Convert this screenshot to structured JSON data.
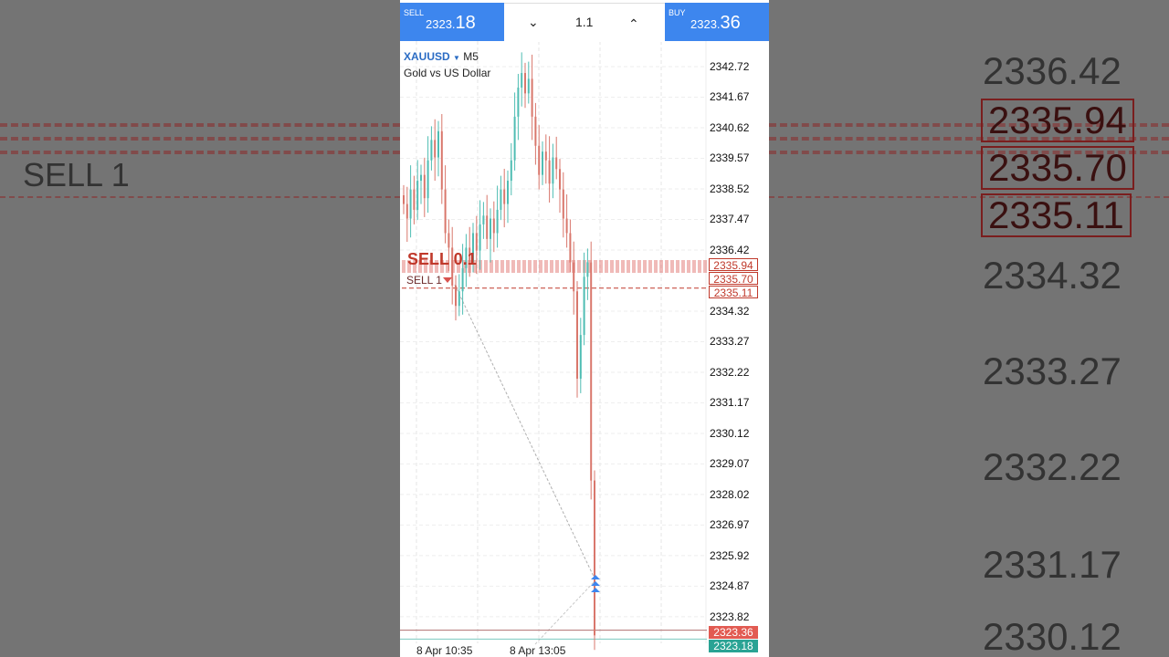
{
  "trade_bar": {
    "sell_label": "SELL",
    "sell_price_main": "2323.",
    "sell_price_big": "18",
    "volume": "1.1",
    "buy_label": "BUY",
    "buy_price_main": "2323.",
    "buy_price_big": "36",
    "volume_down_icon": "chevron-down-icon",
    "volume_up_icon": "chevron-up-icon"
  },
  "symbol": {
    "name": "XAUUSD",
    "timeframe": "M5",
    "description": "Gold vs US Dollar"
  },
  "price_axis": [
    "2342.72",
    "2341.67",
    "2340.62",
    "2339.57",
    "2338.52",
    "2337.47",
    "2336.42",
    "2334.32",
    "2333.27",
    "2332.22",
    "2331.17",
    "2330.12",
    "2329.07",
    "2328.02",
    "2326.97",
    "2325.92",
    "2324.87",
    "2323.82"
  ],
  "price_tags": {
    "order_1": "2335.94",
    "order_2": "2335.70",
    "order_3": "2335.11",
    "ask": "2323.36",
    "bid": "2323.18"
  },
  "order_labels": {
    "sell_group": "SELL 0.1",
    "sell_1": "SELL 1"
  },
  "time_axis": [
    "8 Apr 10:35",
    "8 Apr 13:05"
  ],
  "colors": {
    "up": "#4fbdb3",
    "down": "#d9776c",
    "accent": "#3d86ee",
    "order_line": "#c0392b"
  },
  "candles_close": [
    2338.0,
    2337.5,
    2338.5,
    2337.8,
    2338.8,
    2339.0,
    2338.2,
    2339.5,
    2340.2,
    2339.6,
    2340.5,
    2338.5,
    2337.0,
    2336.5,
    2335.2,
    2334.5,
    2335.0,
    2335.8,
    2336.5,
    2336.0,
    2337.0,
    2336.4,
    2337.3,
    2337.6,
    2336.8,
    2337.5,
    2337.0,
    2337.8,
    2338.5,
    2338.0,
    2338.8,
    2339.5,
    2341.0,
    2342.0,
    2342.5,
    2341.8,
    2342.3,
    2341.0,
    2340.0,
    2339.0,
    2339.8,
    2339.5,
    2338.7,
    2339.6,
    2339.2,
    2338.5,
    2337.5,
    2337.0,
    2336.0,
    2335.0,
    2332.0,
    2333.5,
    2335.5,
    2336.0,
    2328.5,
    2323.18
  ],
  "background": {
    "left_label": "SELL 1",
    "right_labels": [
      "2336.42",
      "2335.94",
      "2335.70",
      "2335.11",
      "2334.32",
      "2333.27",
      "2332.22",
      "2331.17",
      "2330.12"
    ]
  }
}
